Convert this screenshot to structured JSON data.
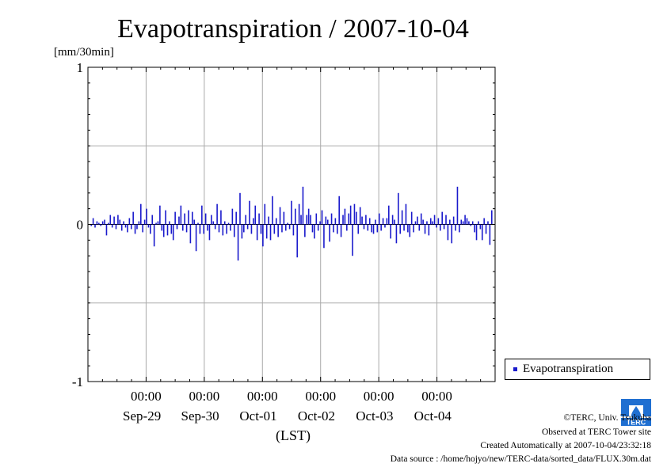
{
  "chart_data": {
    "type": "bar",
    "title": "Evapotranspiration / 2007-10-04",
    "ylabel": "[mm/30min]",
    "xlabel": "(LST)",
    "ylim": [
      -1,
      1
    ],
    "yticks": [
      {
        "value": 1,
        "label": "1"
      },
      {
        "value": 0,
        "label": "0"
      },
      {
        "value": -1,
        "label": "-1"
      }
    ],
    "xticks": [
      {
        "time": "00:00",
        "date": "Sep-29"
      },
      {
        "time": "00:00",
        "date": "Sep-30"
      },
      {
        "time": "00:00",
        "date": "Oct-01"
      },
      {
        "time": "00:00",
        "date": "Oct-02"
      },
      {
        "time": "00:00",
        "date": "Oct-03"
      },
      {
        "time": "00:00",
        "date": "Oct-04"
      }
    ],
    "grid": true,
    "legend": {
      "position": "right",
      "entries": [
        "Evapotranspiration"
      ]
    },
    "series": [
      {
        "name": "Evapotranspiration",
        "color": "#1a1acc",
        "start": "2007-09-28 00:00",
        "interval_minutes": 30,
        "values": [
          -0.01,
          0.04,
          -0.02,
          0.02,
          0.01,
          -0.01,
          0.02,
          0.03,
          -0.07,
          0.01,
          0.06,
          -0.02,
          0.05,
          -0.03,
          0.06,
          0.03,
          -0.04,
          0.02,
          -0.02,
          -0.05,
          0.04,
          -0.03,
          0.08,
          -0.06,
          -0.03,
          0.02,
          0.13,
          -0.05,
          0.03,
          0.1,
          -0.02,
          -0.06,
          0.06,
          -0.14,
          0.01,
          0.02,
          0.12,
          -0.04,
          -0.08,
          0.09,
          -0.07,
          0.02,
          -0.06,
          -0.1,
          0.08,
          -0.03,
          0.05,
          0.12,
          -0.04,
          0.07,
          -0.05,
          0.09,
          -0.12,
          0.08,
          0.03,
          -0.17,
          0.01,
          -0.06,
          0.12,
          -0.06,
          0.07,
          -0.04,
          -0.1,
          0.06,
          0.02,
          -0.03,
          0.13,
          -0.05,
          0.09,
          -0.07,
          0.02,
          -0.06,
          0.01,
          -0.04,
          0.1,
          -0.08,
          0.08,
          -0.23,
          0.2,
          -0.09,
          -0.05,
          0.06,
          -0.03,
          0.15,
          -0.06,
          0.04,
          0.12,
          -0.1,
          0.07,
          -0.06,
          -0.14,
          0.13,
          -0.09,
          0.05,
          -0.1,
          0.18,
          -0.06,
          0.04,
          -0.08,
          0.11,
          -0.05,
          0.08,
          -0.04,
          0.01,
          -0.03,
          0.15,
          -0.07,
          0.1,
          -0.21,
          0.13,
          0.06,
          0.24,
          -0.08,
          0.06,
          0.1,
          0.06,
          -0.05,
          -0.09,
          0.07,
          -0.04,
          0.02,
          0.09,
          -0.15,
          0.05,
          0.03,
          -0.11,
          0.07,
          -0.05,
          0.04,
          -0.06,
          0.18,
          -0.08,
          0.06,
          0.1,
          -0.04,
          0.07,
          0.12,
          -0.2,
          0.13,
          0.08,
          -0.06,
          0.11,
          0.05,
          -0.03,
          0.06,
          -0.04,
          0.04,
          -0.05,
          -0.06,
          0.03,
          -0.05,
          0.07,
          -0.04,
          0.04,
          -0.02,
          0.04,
          0.12,
          -0.09,
          0.06,
          0.03,
          -0.12,
          0.2,
          -0.06,
          0.09,
          -0.04,
          0.13,
          -0.05,
          -0.08,
          0.08,
          -0.05,
          0.02,
          0.05,
          -0.04,
          0.07,
          0.03,
          -0.06,
          0.02,
          -0.07,
          0.04,
          0.02,
          0.06,
          -0.02,
          0.04,
          -0.04,
          0.08,
          -0.03,
          0.06,
          -0.1,
          0.03,
          -0.12,
          0.05,
          -0.04,
          0.24,
          -0.05,
          0.03,
          0.02,
          0.06,
          0.04,
          0.02,
          -0.01,
          0.02,
          -0.05,
          -0.1,
          0.02,
          -0.03,
          -0.1,
          0.04,
          -0.06,
          0.02,
          -0.13,
          0.09
        ]
      }
    ]
  },
  "footer": {
    "copyright": "©TERC, Univ. Tsukuba",
    "site": "Observed at TERC Tower site",
    "created": "Created Automatically at 2007-10-04/23:32:18",
    "source": "Data source : /home/hojyo/new/TERC-data/sorted_data/FLUX.30m.dat",
    "logo_text": "TERC"
  }
}
